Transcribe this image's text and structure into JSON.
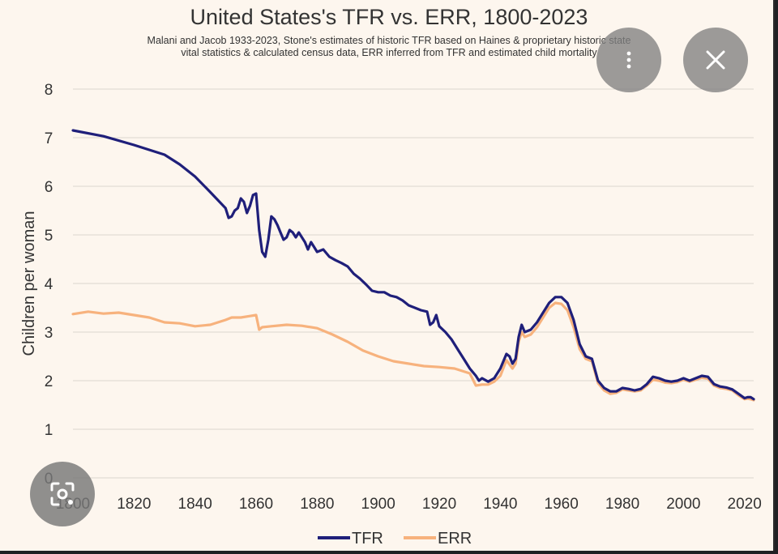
{
  "chart_data": {
    "type": "line",
    "title": "United States's TFR vs. ERR, 1800-2023",
    "subtitle_lines": [
      "Malani and Jacob 1933-2023, Stone's estimates of historic TFR based on Haines & proprietary historic state",
      "vital statistics & calculated census data, ERR inferred from TFR and estimated child mortality"
    ],
    "xlabel": "",
    "ylabel": "Children per woman",
    "xlim": [
      1800,
      2023
    ],
    "ylim": [
      0,
      8
    ],
    "x_ticks": [
      "1800",
      "1820",
      "1840",
      "1860",
      "1880",
      "1900",
      "1920",
      "1940",
      "1960",
      "1980",
      "2000",
      "2020"
    ],
    "y_ticks": [
      "0",
      "1",
      "2",
      "3",
      "4",
      "5",
      "6",
      "7",
      "8"
    ],
    "grid": "horizontal",
    "legend_position": "bottom-center",
    "series": [
      {
        "name": "TFR",
        "color": "#1f1f7a",
        "points": [
          [
            1800,
            7.15
          ],
          [
            1810,
            7.03
          ],
          [
            1820,
            6.85
          ],
          [
            1830,
            6.65
          ],
          [
            1835,
            6.45
          ],
          [
            1840,
            6.2
          ],
          [
            1845,
            5.88
          ],
          [
            1850,
            5.55
          ],
          [
            1851,
            5.35
          ],
          [
            1852,
            5.38
          ],
          [
            1853,
            5.5
          ],
          [
            1854,
            5.55
          ],
          [
            1855,
            5.75
          ],
          [
            1856,
            5.68
          ],
          [
            1857,
            5.45
          ],
          [
            1858,
            5.6
          ],
          [
            1859,
            5.82
          ],
          [
            1860,
            5.85
          ],
          [
            1861,
            5.1
          ],
          [
            1862,
            4.65
          ],
          [
            1863,
            4.55
          ],
          [
            1864,
            4.9
          ],
          [
            1865,
            5.38
          ],
          [
            1866,
            5.32
          ],
          [
            1867,
            5.2
          ],
          [
            1868,
            5.05
          ],
          [
            1869,
            4.9
          ],
          [
            1870,
            4.95
          ],
          [
            1871,
            5.1
          ],
          [
            1872,
            5.05
          ],
          [
            1873,
            4.95
          ],
          [
            1874,
            5.05
          ],
          [
            1875,
            4.95
          ],
          [
            1876,
            4.85
          ],
          [
            1877,
            4.7
          ],
          [
            1878,
            4.85
          ],
          [
            1879,
            4.75
          ],
          [
            1880,
            4.65
          ],
          [
            1882,
            4.7
          ],
          [
            1884,
            4.55
          ],
          [
            1886,
            4.48
          ],
          [
            1888,
            4.42
          ],
          [
            1890,
            4.35
          ],
          [
            1892,
            4.2
          ],
          [
            1894,
            4.1
          ],
          [
            1896,
            3.98
          ],
          [
            1898,
            3.85
          ],
          [
            1900,
            3.82
          ],
          [
            1902,
            3.82
          ],
          [
            1904,
            3.75
          ],
          [
            1906,
            3.72
          ],
          [
            1908,
            3.65
          ],
          [
            1910,
            3.55
          ],
          [
            1912,
            3.5
          ],
          [
            1914,
            3.45
          ],
          [
            1916,
            3.42
          ],
          [
            1917,
            3.15
          ],
          [
            1918,
            3.2
          ],
          [
            1919,
            3.35
          ],
          [
            1920,
            3.12
          ],
          [
            1922,
            3.0
          ],
          [
            1924,
            2.85
          ],
          [
            1926,
            2.65
          ],
          [
            1928,
            2.45
          ],
          [
            1930,
            2.25
          ],
          [
            1932,
            2.1
          ],
          [
            1933,
            2.0
          ],
          [
            1934,
            2.05
          ],
          [
            1936,
            1.98
          ],
          [
            1938,
            2.05
          ],
          [
            1940,
            2.25
          ],
          [
            1942,
            2.55
          ],
          [
            1943,
            2.5
          ],
          [
            1944,
            2.35
          ],
          [
            1945,
            2.45
          ],
          [
            1946,
            2.9
          ],
          [
            1947,
            3.15
          ],
          [
            1948,
            3.0
          ],
          [
            1950,
            3.05
          ],
          [
            1952,
            3.2
          ],
          [
            1954,
            3.4
          ],
          [
            1956,
            3.6
          ],
          [
            1958,
            3.72
          ],
          [
            1960,
            3.72
          ],
          [
            1962,
            3.6
          ],
          [
            1964,
            3.25
          ],
          [
            1966,
            2.75
          ],
          [
            1968,
            2.5
          ],
          [
            1970,
            2.45
          ],
          [
            1972,
            2.0
          ],
          [
            1974,
            1.85
          ],
          [
            1976,
            1.78
          ],
          [
            1978,
            1.78
          ],
          [
            1980,
            1.85
          ],
          [
            1982,
            1.83
          ],
          [
            1984,
            1.8
          ],
          [
            1986,
            1.83
          ],
          [
            1988,
            1.93
          ],
          [
            1990,
            2.08
          ],
          [
            1992,
            2.05
          ],
          [
            1994,
            2.0
          ],
          [
            1996,
            1.98
          ],
          [
            1998,
            2.0
          ],
          [
            2000,
            2.05
          ],
          [
            2002,
            2.0
          ],
          [
            2004,
            2.05
          ],
          [
            2006,
            2.1
          ],
          [
            2008,
            2.08
          ],
          [
            2010,
            1.93
          ],
          [
            2012,
            1.88
          ],
          [
            2014,
            1.86
          ],
          [
            2016,
            1.82
          ],
          [
            2018,
            1.73
          ],
          [
            2020,
            1.64
          ],
          [
            2021,
            1.66
          ],
          [
            2022,
            1.66
          ],
          [
            2023,
            1.62
          ]
        ]
      },
      {
        "name": "ERR",
        "color": "#f7b27d",
        "points": [
          [
            1800,
            3.37
          ],
          [
            1805,
            3.42
          ],
          [
            1810,
            3.38
          ],
          [
            1815,
            3.4
          ],
          [
            1820,
            3.35
          ],
          [
            1825,
            3.3
          ],
          [
            1830,
            3.2
          ],
          [
            1835,
            3.18
          ],
          [
            1840,
            3.12
          ],
          [
            1845,
            3.15
          ],
          [
            1850,
            3.25
          ],
          [
            1852,
            3.3
          ],
          [
            1855,
            3.3
          ],
          [
            1858,
            3.33
          ],
          [
            1860,
            3.35
          ],
          [
            1861,
            3.05
          ],
          [
            1862,
            3.1
          ],
          [
            1865,
            3.12
          ],
          [
            1870,
            3.15
          ],
          [
            1875,
            3.13
          ],
          [
            1880,
            3.08
          ],
          [
            1885,
            2.95
          ],
          [
            1890,
            2.8
          ],
          [
            1895,
            2.62
          ],
          [
            1900,
            2.5
          ],
          [
            1905,
            2.4
          ],
          [
            1910,
            2.35
          ],
          [
            1915,
            2.3
          ],
          [
            1920,
            2.28
          ],
          [
            1925,
            2.25
          ],
          [
            1930,
            2.15
          ],
          [
            1932,
            1.9
          ],
          [
            1934,
            1.92
          ],
          [
            1936,
            1.92
          ],
          [
            1938,
            1.98
          ],
          [
            1940,
            2.1
          ],
          [
            1942,
            2.42
          ],
          [
            1944,
            2.25
          ],
          [
            1945,
            2.35
          ],
          [
            1946,
            2.8
          ],
          [
            1947,
            3.0
          ],
          [
            1948,
            2.9
          ],
          [
            1950,
            2.95
          ],
          [
            1952,
            3.1
          ],
          [
            1954,
            3.3
          ],
          [
            1956,
            3.5
          ],
          [
            1958,
            3.6
          ],
          [
            1960,
            3.58
          ],
          [
            1962,
            3.45
          ],
          [
            1964,
            3.1
          ],
          [
            1966,
            2.65
          ],
          [
            1968,
            2.45
          ],
          [
            1970,
            2.4
          ],
          [
            1972,
            1.95
          ],
          [
            1974,
            1.8
          ],
          [
            1976,
            1.73
          ],
          [
            1978,
            1.75
          ],
          [
            1980,
            1.82
          ],
          [
            1982,
            1.8
          ],
          [
            1984,
            1.78
          ],
          [
            1986,
            1.8
          ],
          [
            1988,
            1.9
          ],
          [
            1990,
            2.02
          ],
          [
            1992,
            2.0
          ],
          [
            1994,
            1.96
          ],
          [
            1996,
            1.95
          ],
          [
            1998,
            1.97
          ],
          [
            2000,
            2.02
          ],
          [
            2002,
            1.98
          ],
          [
            2004,
            2.02
          ],
          [
            2006,
            2.06
          ],
          [
            2008,
            2.04
          ],
          [
            2010,
            1.9
          ],
          [
            2012,
            1.85
          ],
          [
            2014,
            1.83
          ],
          [
            2016,
            1.8
          ],
          [
            2018,
            1.7
          ],
          [
            2020,
            1.62
          ],
          [
            2021,
            1.63
          ],
          [
            2022,
            1.62
          ],
          [
            2023,
            1.6
          ]
        ]
      }
    ]
  },
  "overlay": {
    "more_icon": "more-vert-icon",
    "close_icon": "close-icon",
    "lens_icon": "lens-search-icon"
  }
}
